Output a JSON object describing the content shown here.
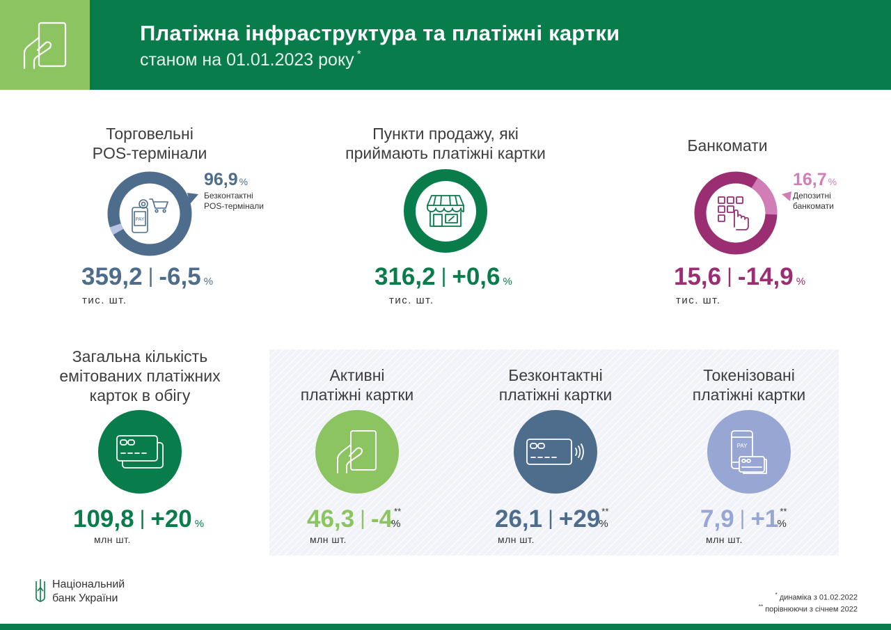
{
  "header": {
    "title": "Платіжна інфраструктура та платіжні картки",
    "subtitle": "станом на 01.01.2023 року",
    "subtitle_mark": "*",
    "icon": "hand-card-icon"
  },
  "pos": {
    "title_line1": "Торговельні",
    "title_line2": "POS-термінали",
    "value": "359,2",
    "change": "-6,5",
    "pct": "%",
    "unit": "тис. шт.",
    "share_value": "96,9",
    "share_pct": "%",
    "share_label_line1": "Безконтактні",
    "share_label_line2": "POS-термінали",
    "share_fraction": 0.969,
    "color": "#4e6d8c",
    "icon": "pos-terminal-pay-icon"
  },
  "outlets": {
    "title_line1": "Пункти продажу, які",
    "title_line2": "приймають платіжні картки",
    "value": "316,2",
    "change": "+0,6",
    "pct": "%",
    "unit": "тис. шт.",
    "color": "#087c4a",
    "icon": "shop-storefront-icon"
  },
  "atm": {
    "title": "Банкомати",
    "value": "15,6",
    "change": "-14,9",
    "pct": "%",
    "unit": "тис. шт.",
    "share_value": "16,7",
    "share_pct": "%",
    "share_label_line1": "Депозитні",
    "share_label_line2": "банкомати",
    "share_fraction": 0.167,
    "color": "#9b2d72",
    "accent": "#d27eb6",
    "icon": "atm-keypad-icon"
  },
  "total_cards": {
    "title_line1": "Загальна кількість",
    "title_line2": "емітованих платіжних",
    "title_line3": "карток в обігу",
    "value": "109,8",
    "change": "+20",
    "pct": "%",
    "unit": "млн шт.",
    "color": "#087c4a",
    "icon": "cards-stack-icon"
  },
  "active_cards": {
    "title_line1": "Активні",
    "title_line2": "платіжні картки",
    "value": "46,3",
    "change": "-4",
    "stars": "**",
    "pct": "%",
    "unit": "млн шт.",
    "color": "#8dc462",
    "icon": "hand-card-icon"
  },
  "contactless_cards": {
    "title_line1": "Безконтактні",
    "title_line2": "платіжні картки",
    "value": "26,1",
    "change": "+29",
    "stars": "**",
    "pct": "%",
    "unit": "млн шт.",
    "color": "#4e6d8c",
    "icon": "contactless-card-icon"
  },
  "tokenized_cards": {
    "title_line1": "Токенізовані",
    "title_line2": "платіжні картки",
    "value": "7,9",
    "change": "+1",
    "stars": "**",
    "pct": "%",
    "unit": "млн шт.",
    "color": "#98a6d4",
    "icon": "phone-pay-card-icon"
  },
  "footer": {
    "bank_line1": "Національний",
    "bank_line2": "банк України",
    "note1_mark": "*",
    "note1": "динаміка з 01.02.2022",
    "note2_mark": "**",
    "note2": "порівнюючи з січнем 2022",
    "logo_icon": "nbu-logo-icon"
  },
  "colors": {
    "brand_green": "#087c4a",
    "light_green": "#8dc462",
    "slate_blue": "#4e6d8c",
    "magenta": "#9b2d72",
    "lavender": "#98a6d4"
  }
}
